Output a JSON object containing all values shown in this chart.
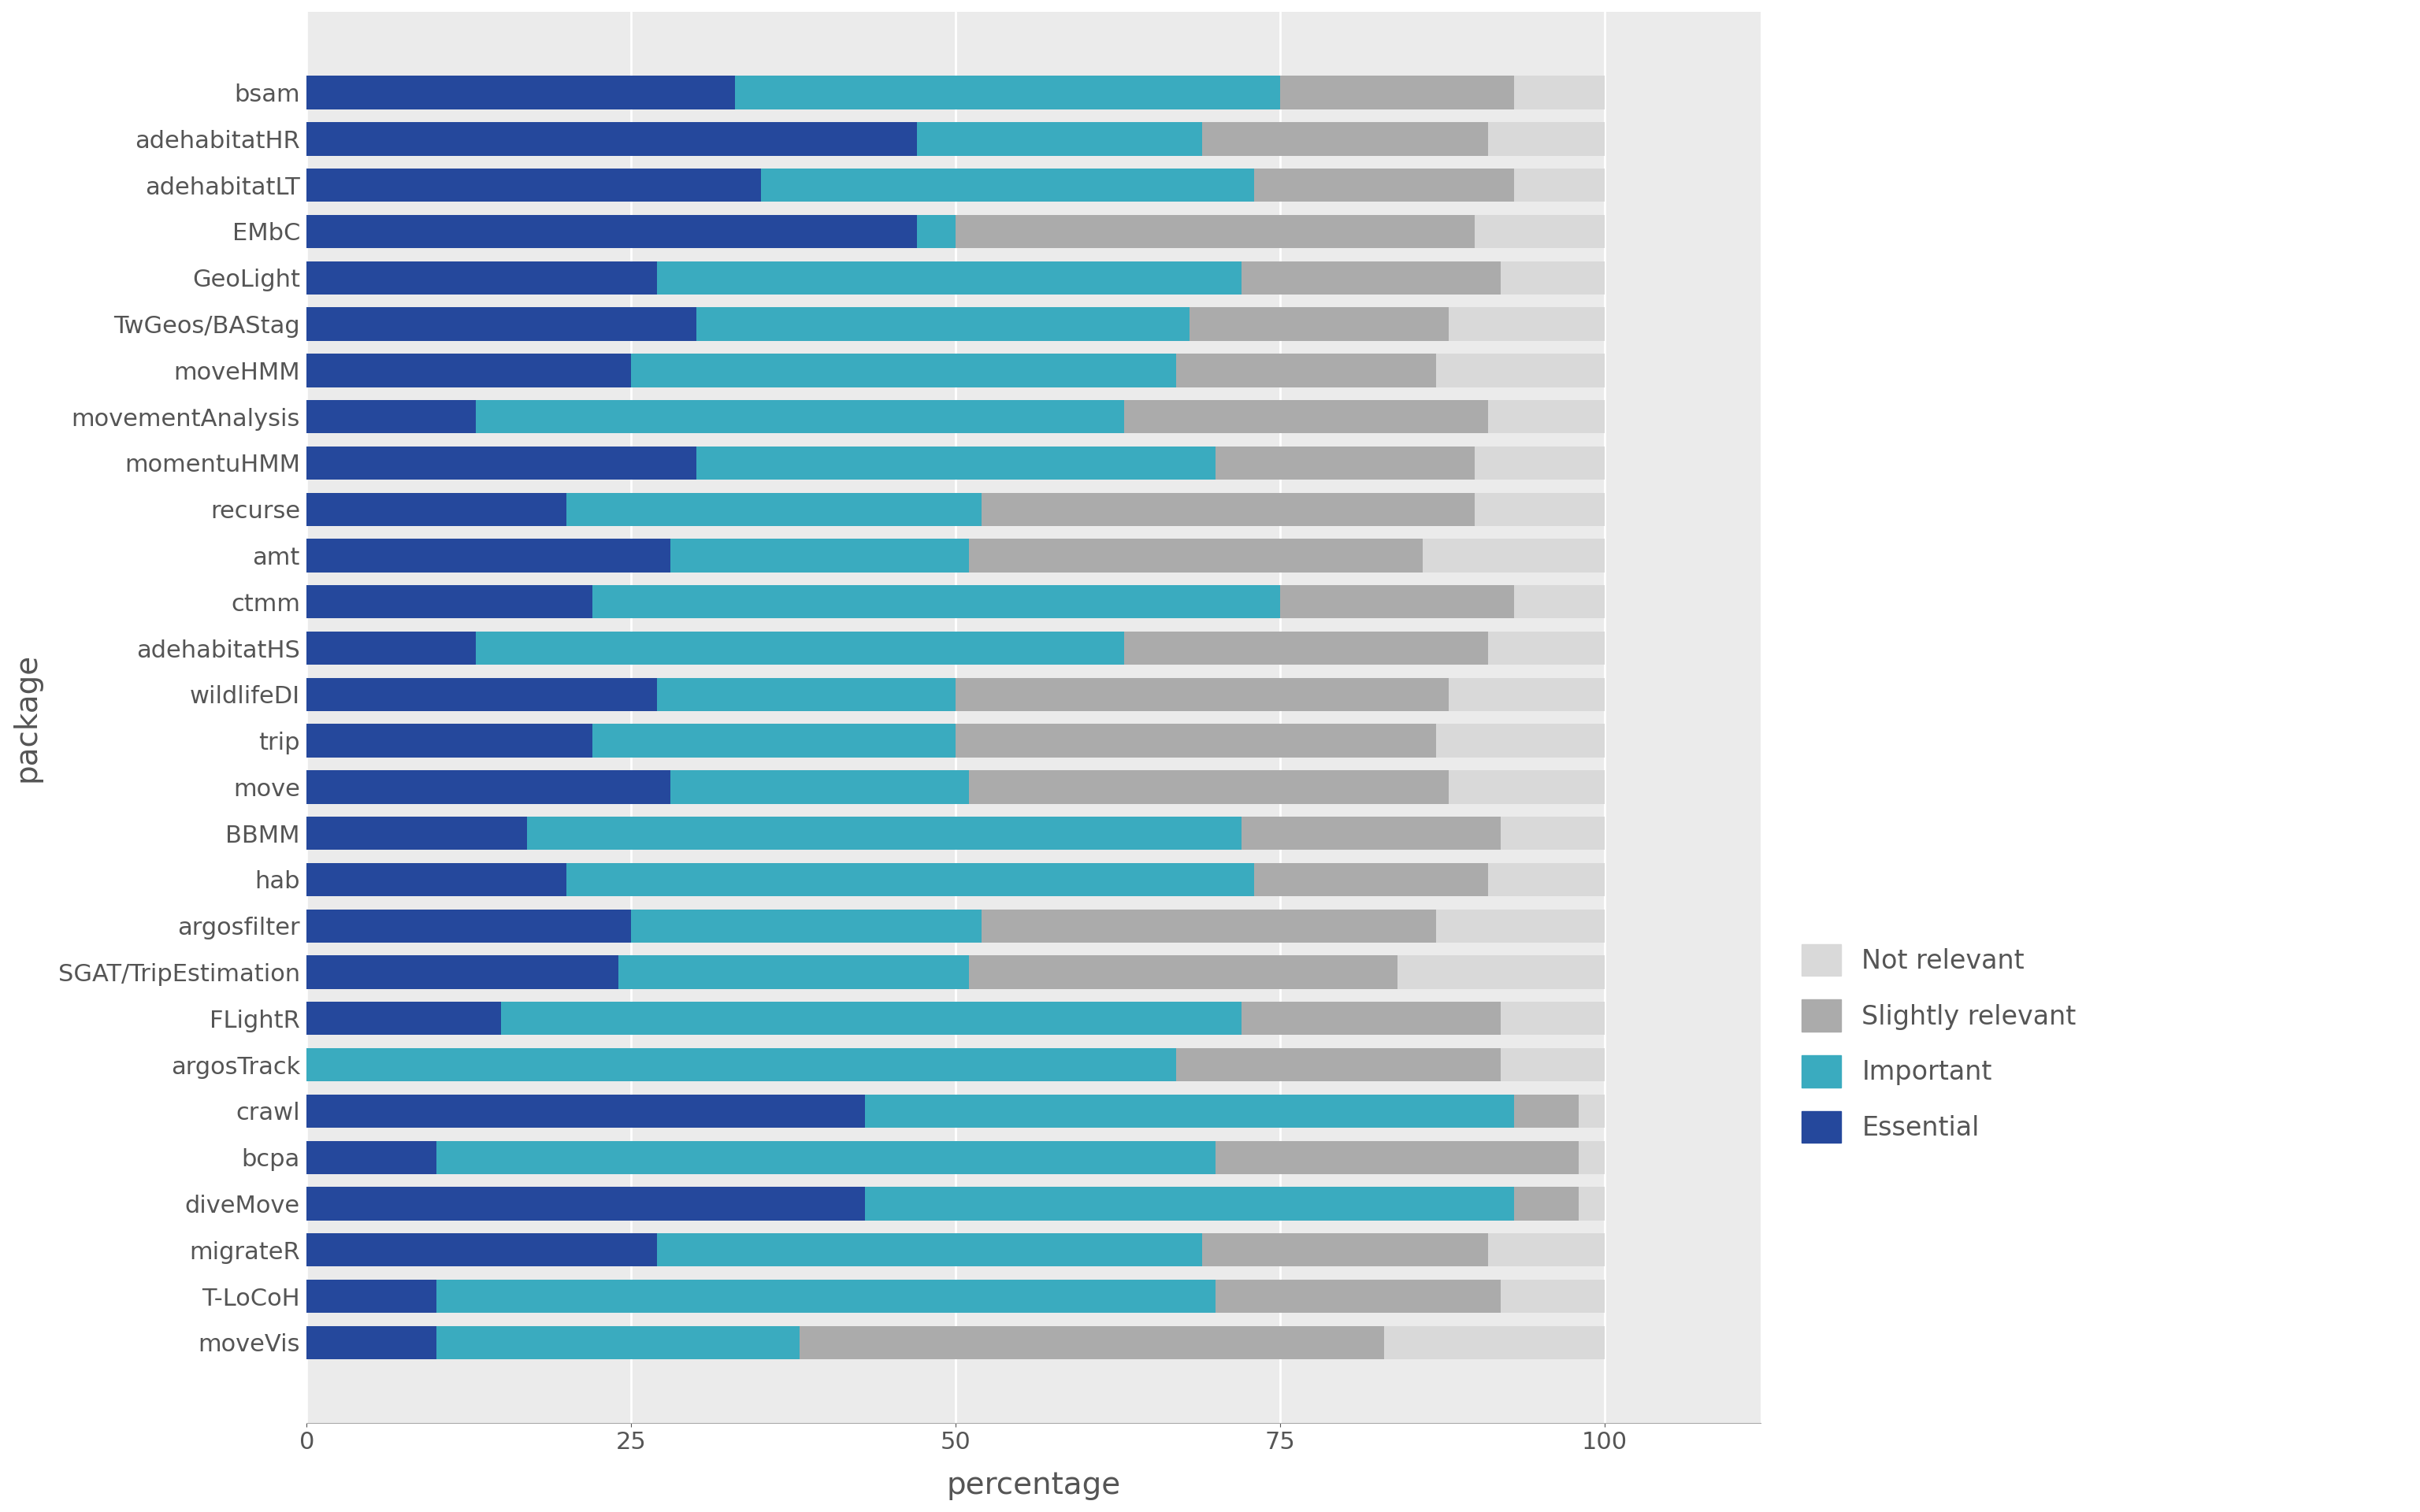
{
  "packages": [
    "bsam",
    "adehabitatHR",
    "adehabitatLT",
    "EMbC",
    "GeoLight",
    "TwGeos/BAStag",
    "moveHMM",
    "movementAnalysis",
    "momentuHMM",
    "recurse",
    "amt",
    "ctmm",
    "adehabitatHS",
    "wildlifeDI",
    "trip",
    "move",
    "BBMM",
    "hab",
    "argosfilter",
    "SGAT/TripEstimation",
    "FLightR",
    "argosTrack",
    "crawl",
    "bcpa",
    "diveMove",
    "migrateR",
    "T-LoCoH",
    "moveVis"
  ],
  "essential": [
    33,
    47,
    35,
    47,
    27,
    30,
    25,
    13,
    30,
    20,
    28,
    22,
    13,
    27,
    22,
    28,
    17,
    20,
    25,
    24,
    15,
    0,
    43,
    10,
    43,
    27,
    10,
    10
  ],
  "important": [
    42,
    22,
    38,
    3,
    45,
    38,
    42,
    50,
    40,
    32,
    23,
    53,
    50,
    23,
    28,
    23,
    55,
    53,
    27,
    27,
    57,
    67,
    50,
    60,
    50,
    42,
    60,
    28
  ],
  "slightly_relevant": [
    18,
    22,
    20,
    40,
    20,
    20,
    20,
    28,
    20,
    38,
    35,
    18,
    28,
    38,
    37,
    37,
    20,
    18,
    35,
    33,
    20,
    25,
    5,
    28,
    5,
    22,
    22,
    45
  ],
  "not_relevant": [
    7,
    9,
    7,
    10,
    8,
    12,
    13,
    9,
    10,
    10,
    14,
    7,
    9,
    12,
    13,
    12,
    8,
    9,
    13,
    16,
    8,
    8,
    2,
    2,
    2,
    9,
    8,
    17
  ],
  "colors": {
    "essential": "#25489C",
    "important": "#3AABBF",
    "slightly_relevant": "#ABABAB",
    "not_relevant": "#D9D9D9"
  },
  "xlabel": "percentage",
  "ylabel": "package",
  "background_color": "#FFFFFF",
  "plot_background": "#EBEBEB"
}
